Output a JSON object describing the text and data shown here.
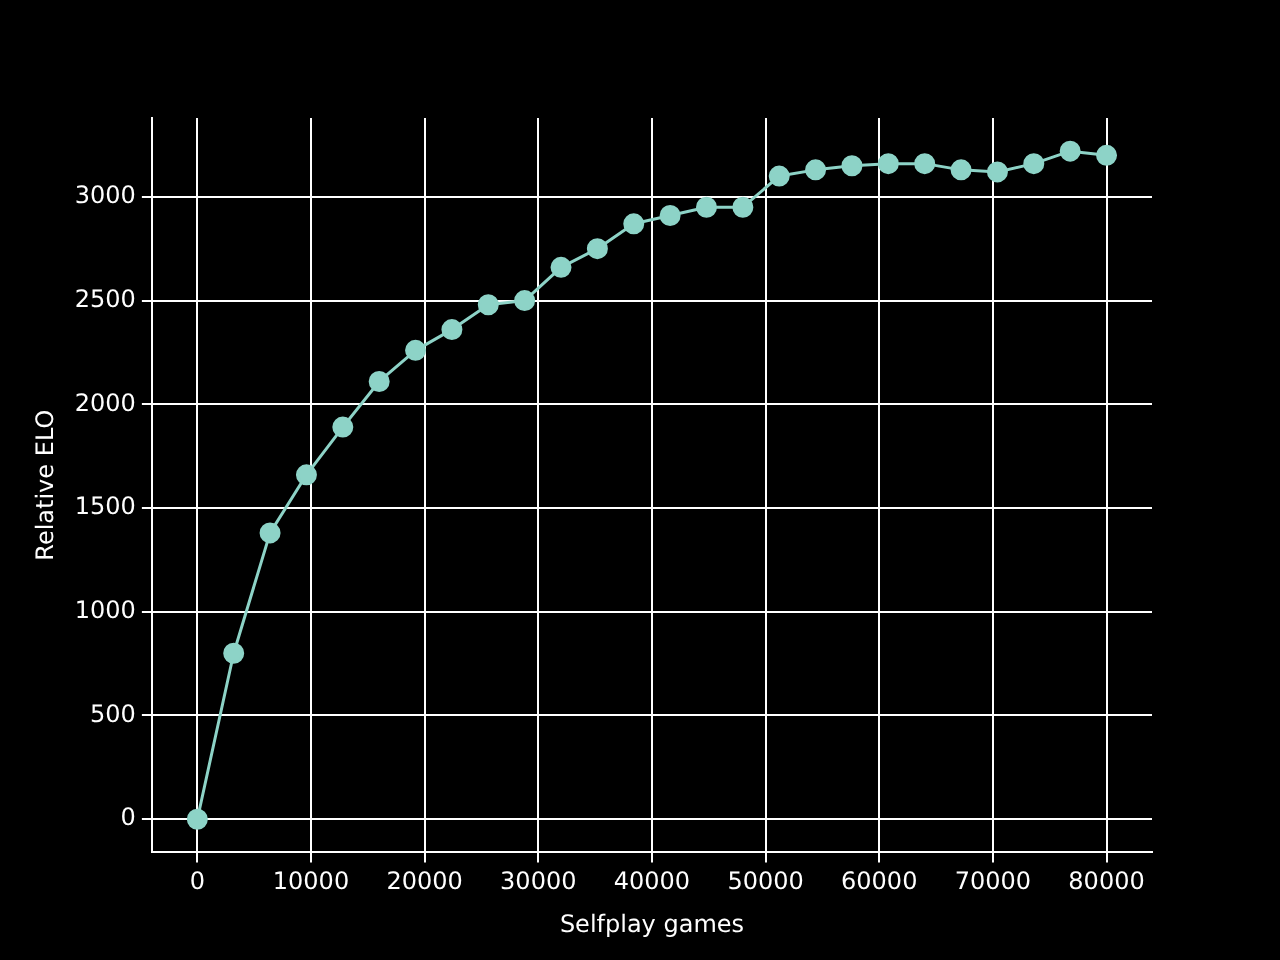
{
  "chart_data": {
    "type": "line",
    "xlabel": "Selfplay games",
    "ylabel": "Relative ELO",
    "x": [
      0,
      3200,
      6400,
      9600,
      12800,
      16000,
      19200,
      22400,
      25600,
      28800,
      32000,
      35200,
      38400,
      41600,
      44800,
      48000,
      51200,
      54400,
      57600,
      60800,
      64000,
      67200,
      70400,
      73600,
      76800,
      80000
    ],
    "series": [
      {
        "color": "#8dd3c7",
        "values": [
          0,
          800,
          1380,
          1660,
          1890,
          2110,
          2260,
          2360,
          2480,
          2500,
          2660,
          2750,
          2870,
          2910,
          2950,
          2950,
          3100,
          3130,
          3150,
          3160,
          3160,
          3130,
          3120,
          3160,
          3220,
          3200
        ]
      }
    ],
    "xlim": [
      -4000,
      84000
    ],
    "xticks": [
      0,
      10000,
      20000,
      30000,
      40000,
      50000,
      60000,
      70000,
      80000
    ],
    "ylim": [
      -160,
      3380
    ],
    "yticks": [
      0,
      500,
      1000,
      1500,
      2000,
      2500,
      3000
    ],
    "grid": true,
    "marker": "circle",
    "line_style": "solid",
    "legend": false
  }
}
